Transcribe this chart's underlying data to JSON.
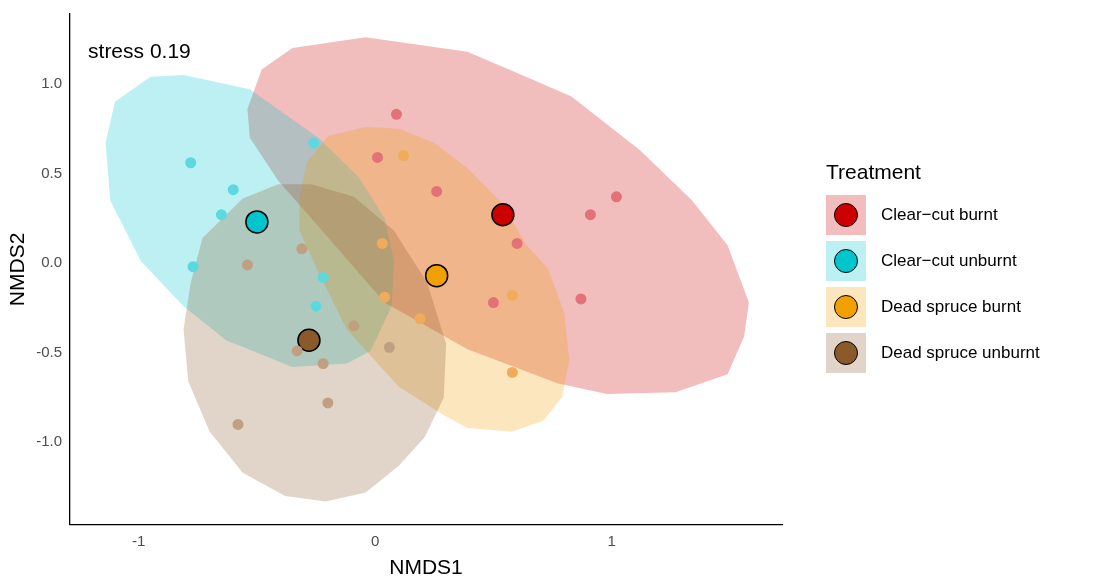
{
  "chart_data": {
    "type": "scatter",
    "xlabel": "NMDS1",
    "ylabel": "NMDS2",
    "legend_title": "Treatment",
    "legend": "right",
    "grid": false,
    "xlim": [
      -1.29,
      1.72
    ],
    "ylim": [
      -1.46,
      1.39
    ],
    "xticks": [
      -1,
      0,
      1
    ],
    "yticks": [
      {
        "value": -1,
        "label": "-1.0"
      },
      {
        "value": -0.5,
        "label": "-0.5"
      },
      {
        "value": 0,
        "label": "0.0"
      },
      {
        "value": 0.5,
        "label": "0.5"
      },
      {
        "value": 1,
        "label": "1.0"
      }
    ],
    "annotations": [
      "stress 0.19"
    ],
    "series": [
      {
        "type": "area",
        "color": "#cc0000",
        "x": [
          -0.54,
          -0.48,
          -0.35,
          -0.04,
          0.39,
          0.83,
          1.12,
          1.34,
          1.49,
          1.58,
          1.56,
          1.49,
          1.27,
          0.98,
          0.77,
          0.39,
          0.04,
          -0.27,
          -0.41,
          -0.53
        ],
        "values": [
          0.86,
          1.08,
          1.2,
          1.26,
          1.18,
          0.93,
          0.63,
          0.35,
          0.1,
          -0.22,
          -0.41,
          -0.62,
          -0.72,
          -0.73,
          -0.67,
          -0.48,
          -0.22,
          0.25,
          0.46,
          0.7
        ]
      },
      {
        "type": "area",
        "color": "#00c5cd",
        "x": [
          -1.14,
          -1.1,
          -0.95,
          -0.81,
          -0.53,
          -0.24,
          -0.07,
          0.04,
          0.08,
          0.07,
          -0.02,
          -0.12,
          -0.35,
          -0.63,
          -0.81,
          -0.99,
          -1.12
        ],
        "values": [
          0.67,
          0.9,
          1.04,
          1.05,
          0.97,
          0.7,
          0.48,
          0.25,
          0.01,
          -0.24,
          -0.49,
          -0.56,
          -0.58,
          -0.43,
          -0.24,
          0.01,
          0.35
        ]
      },
      {
        "type": "area",
        "color": "#f0a000",
        "x": [
          -0.32,
          -0.29,
          -0.2,
          -0.04,
          0.1,
          0.25,
          0.39,
          0.54,
          0.64,
          0.73,
          0.8,
          0.82,
          0.79,
          0.71,
          0.58,
          0.39,
          0.28,
          0.1,
          -0.12,
          -0.24,
          -0.32
        ],
        "values": [
          0.36,
          0.56,
          0.71,
          0.76,
          0.75,
          0.67,
          0.53,
          0.33,
          0.1,
          -0.03,
          -0.28,
          -0.54,
          -0.75,
          -0.88,
          -0.94,
          -0.92,
          -0.84,
          -0.69,
          -0.37,
          -0.05,
          0.18
        ]
      },
      {
        "type": "area",
        "color": "#8b5a2b",
        "x": [
          -0.81,
          -0.78,
          -0.73,
          -0.56,
          -0.41,
          -0.27,
          -0.09,
          0.08,
          0.22,
          0.3,
          0.29,
          0.21,
          0.1,
          -0.04,
          -0.21,
          -0.38,
          -0.56,
          -0.7,
          -0.79
        ],
        "values": [
          -0.37,
          -0.11,
          0.14,
          0.36,
          0.44,
          0.44,
          0.37,
          0.18,
          -0.11,
          -0.45,
          -0.75,
          -0.97,
          -1.13,
          -1.28,
          -1.33,
          -1.3,
          -1.17,
          -0.94,
          -0.66
        ]
      },
      {
        "type": "scatter",
        "marker": "circle",
        "color": "#e27278",
        "x": [
          0.09,
          0.01,
          0.26,
          1.02,
          0.91,
          0.6,
          0.5,
          0.87
        ],
        "values": [
          0.83,
          0.59,
          0.4,
          0.37,
          0.27,
          0.11,
          -0.22,
          -0.2
        ]
      },
      {
        "type": "scatter",
        "marker": "circle",
        "color": "#5cd9de",
        "x": [
          -0.78,
          -0.6,
          -0.65,
          -0.77,
          -0.26,
          -0.25,
          -0.22
        ],
        "values": [
          0.56,
          0.41,
          0.27,
          -0.02,
          0.67,
          -0.24,
          -0.08
        ]
      },
      {
        "type": "scatter",
        "marker": "circle",
        "color": "#f0ac5a",
        "x": [
          0.12,
          0.58,
          0.19,
          0.58,
          0.04,
          0.03
        ],
        "values": [
          0.6,
          -0.18,
          -0.31,
          -0.61,
          -0.19,
          0.11
        ]
      },
      {
        "type": "scatter",
        "marker": "circle",
        "color": "#c0a080",
        "x": [
          -0.54,
          -0.31,
          -0.09,
          -0.33,
          -0.22,
          -0.2,
          -0.58,
          0.06
        ],
        "values": [
          -0.01,
          0.08,
          -0.35,
          -0.49,
          -0.56,
          -0.78,
          -0.9,
          -0.47
        ]
      },
      {
        "type": "scatter",
        "marker": "circle",
        "name": "Clear−cut burnt",
        "color": "#cc0000",
        "x": [
          0.54
        ],
        "values": [
          0.27
        ]
      },
      {
        "type": "scatter",
        "marker": "circle",
        "name": "Clear−cut unburnt",
        "color": "#00c5cd",
        "x": [
          -0.5
        ],
        "values": [
          0.23
        ]
      },
      {
        "type": "scatter",
        "marker": "circle",
        "name": "Dead spruce burnt",
        "color": "#f0a000",
        "x": [
          0.26
        ],
        "values": [
          -0.07
        ]
      },
      {
        "type": "scatter",
        "marker": "circle",
        "name": "Dead spruce unburnt",
        "color": "#8b5a2b",
        "x": [
          -0.28
        ],
        "values": [
          -0.43
        ]
      }
    ]
  }
}
